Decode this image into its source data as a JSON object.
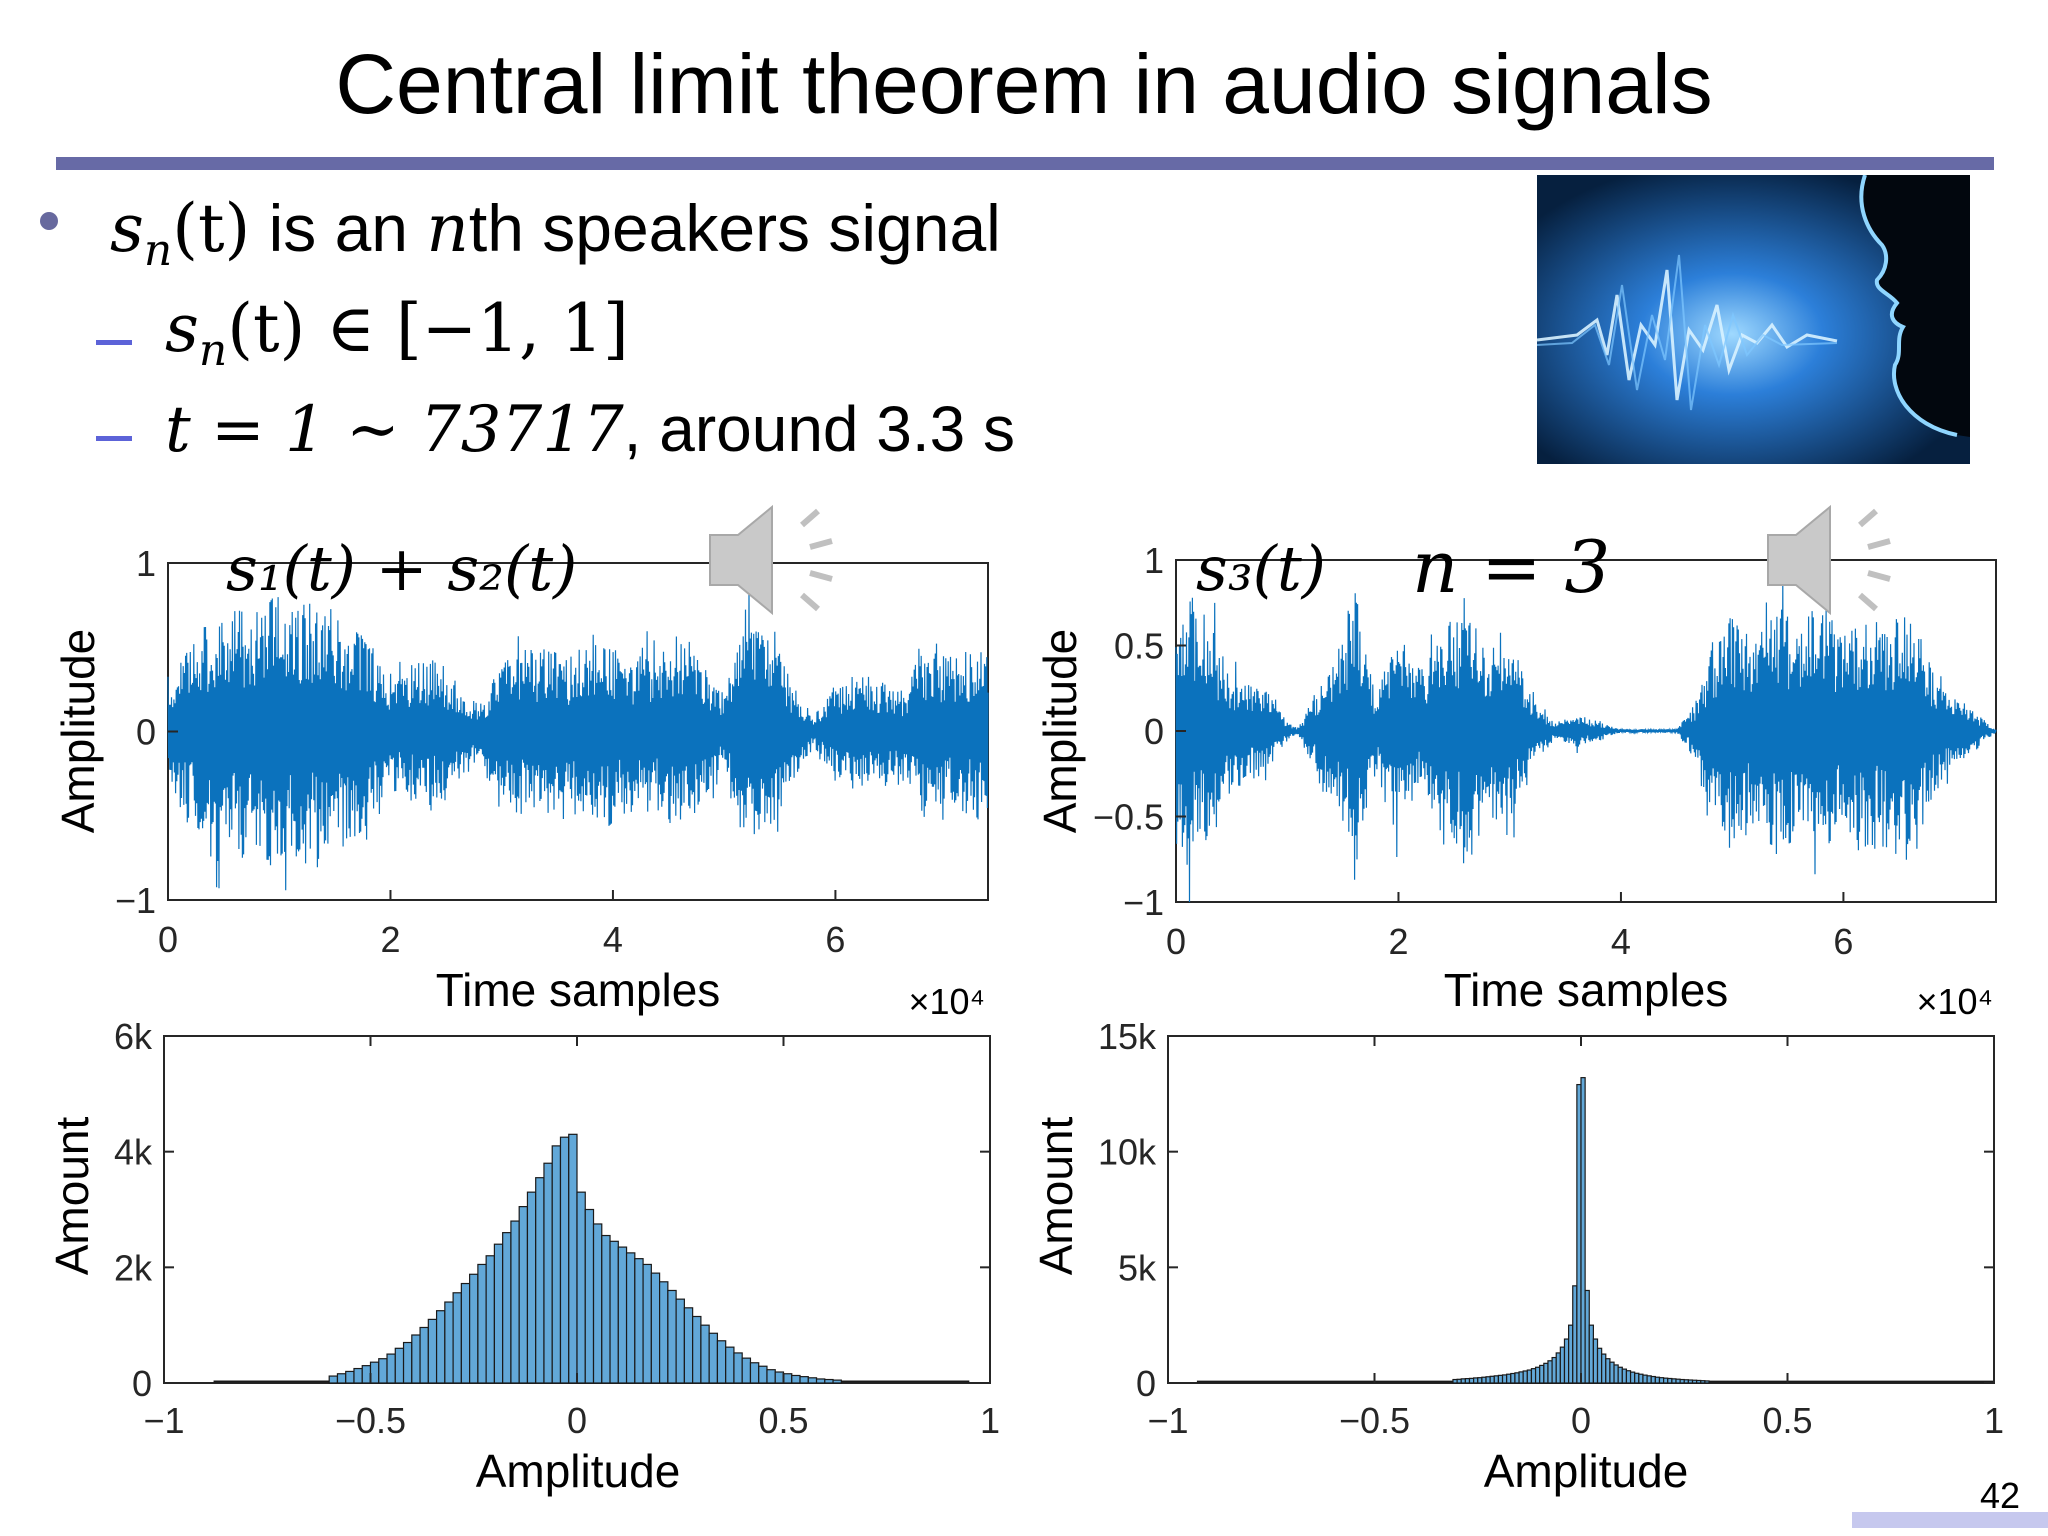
{
  "slide": {
    "title": "Central limit theorem in audio signals",
    "page_number": "42",
    "bullets": {
      "b1_math": "s",
      "b1_sub": "n",
      "b1_paren": "(t)",
      "b1_text1": "is an ",
      "b1_n": "n",
      "b1_text2": "th speakers signal",
      "b2_math": "s",
      "b2_sub": "n",
      "b2_rest": "(t) ∈ [−1, 1]",
      "b3_math": "t = 1 ∼ 73717",
      "b3_text": ", around 3.3 s"
    },
    "labels": {
      "left_wave_label": "s₁(t) + s₂(t)",
      "right_wave_label": "s₃(t)",
      "n_label": "n = 3"
    },
    "icons": [
      "speaker-sound-icon",
      "speaker-sound-icon"
    ],
    "colors": {
      "title_rule": "#676aa6",
      "dash": "#5c63d8",
      "signal": "#0b72bd",
      "hist_fill": "#62a8d8"
    }
  },
  "chart_data": [
    {
      "type": "line",
      "name": "waveform_left",
      "xlabel": "Time samples",
      "ylabel": "Amplitude",
      "x_multiplier": "×10⁴",
      "xlim": [
        0,
        7.3717
      ],
      "ylim": [
        -1,
        1
      ],
      "xticks": [
        "0",
        "2",
        "4",
        "6"
      ],
      "yticks": [
        "−1",
        "0",
        "1"
      ],
      "envelope_x": [
        0,
        0.2,
        0.4,
        0.6,
        0.8,
        1.0,
        1.2,
        1.4,
        1.6,
        1.8,
        2.0,
        2.2,
        2.4,
        2.6,
        2.8,
        3.0,
        3.2,
        3.4,
        3.6,
        3.8,
        4.0,
        4.2,
        4.4,
        4.6,
        4.8,
        5.0,
        5.2,
        5.4,
        5.6,
        5.8,
        6.0,
        6.2,
        6.4,
        6.6,
        6.8,
        7.0,
        7.37
      ],
      "envelope_amp": [
        0.35,
        0.55,
        0.7,
        0.75,
        0.7,
        0.85,
        0.8,
        0.75,
        0.65,
        0.55,
        0.35,
        0.4,
        0.45,
        0.3,
        0.15,
        0.45,
        0.5,
        0.5,
        0.45,
        0.55,
        0.5,
        0.45,
        0.5,
        0.55,
        0.45,
        0.2,
        0.75,
        0.6,
        0.3,
        0.1,
        0.25,
        0.35,
        0.3,
        0.25,
        0.5,
        0.45,
        0.5
      ]
    },
    {
      "type": "line",
      "name": "waveform_right",
      "xlabel": "Time samples",
      "ylabel": "Amplitude",
      "x_multiplier": "×10⁴",
      "xlim": [
        0,
        7.3717
      ],
      "ylim": [
        -1,
        1
      ],
      "xticks": [
        "0",
        "2",
        "4",
        "6"
      ],
      "yticks": [
        "−1",
        "−0.5",
        "0",
        "0.5",
        "1"
      ],
      "envelope_x": [
        0,
        0.1,
        0.2,
        0.3,
        0.4,
        0.6,
        0.8,
        1.0,
        1.1,
        1.3,
        1.5,
        1.6,
        1.7,
        1.8,
        2.0,
        2.2,
        2.4,
        2.6,
        2.8,
        3.0,
        3.2,
        3.4,
        3.6,
        4.0,
        4.5,
        4.7,
        4.8,
        5.0,
        5.2,
        5.4,
        5.6,
        5.8,
        6.0,
        6.2,
        6.4,
        6.6,
        6.8,
        7.0,
        7.37
      ],
      "envelope_amp": [
        0.7,
        0.95,
        0.6,
        0.8,
        0.4,
        0.3,
        0.25,
        0.05,
        0.02,
        0.3,
        0.55,
        0.9,
        0.5,
        0.2,
        0.6,
        0.35,
        0.6,
        0.75,
        0.55,
        0.6,
        0.2,
        0.05,
        0.1,
        0.01,
        0.01,
        0.2,
        0.5,
        0.7,
        0.5,
        0.75,
        0.6,
        0.8,
        0.55,
        0.7,
        0.6,
        0.75,
        0.4,
        0.2,
        0.01
      ]
    },
    {
      "type": "bar",
      "name": "histogram_left",
      "xlabel": "Amplitude",
      "ylabel": "Amount",
      "xlim": [
        -1,
        1
      ],
      "ylim": [
        0,
        6000
      ],
      "xticks": [
        "−1",
        "−0.5",
        "0",
        "0.5",
        "1"
      ],
      "yticks": [
        "0",
        "2k",
        "4k",
        "6k"
      ],
      "bin_width": 0.02,
      "bin_centers": [
        -0.59,
        -0.57,
        -0.55,
        -0.53,
        -0.51,
        -0.49,
        -0.47,
        -0.45,
        -0.43,
        -0.41,
        -0.39,
        -0.37,
        -0.35,
        -0.33,
        -0.31,
        -0.29,
        -0.27,
        -0.25,
        -0.23,
        -0.21,
        -0.19,
        -0.17,
        -0.15,
        -0.13,
        -0.11,
        -0.09,
        -0.07,
        -0.05,
        -0.03,
        -0.01,
        0.01,
        0.03,
        0.05,
        0.07,
        0.09,
        0.11,
        0.13,
        0.15,
        0.17,
        0.19,
        0.21,
        0.23,
        0.25,
        0.27,
        0.29,
        0.31,
        0.33,
        0.35,
        0.37,
        0.39,
        0.41,
        0.43,
        0.45,
        0.47,
        0.49,
        0.51,
        0.53,
        0.55,
        0.57,
        0.59,
        0.61,
        0.63
      ],
      "values": [
        120,
        160,
        200,
        250,
        300,
        360,
        420,
        500,
        600,
        700,
        830,
        960,
        1100,
        1250,
        1400,
        1560,
        1720,
        1880,
        2050,
        2200,
        2400,
        2600,
        2800,
        3050,
        3300,
        3550,
        3800,
        4100,
        4250,
        4300,
        3300,
        3000,
        2750,
        2550,
        2450,
        2350,
        2250,
        2150,
        2050,
        1900,
        1750,
        1600,
        1450,
        1300,
        1150,
        1000,
        860,
        730,
        620,
        520,
        430,
        350,
        290,
        230,
        190,
        160,
        130,
        110,
        90,
        70,
        60,
        50
      ],
      "tails": {
        "left_from": -0.88,
        "right_to": 0.95,
        "tail_value": 25
      }
    },
    {
      "type": "bar",
      "name": "histogram_right",
      "xlabel": "Amplitude",
      "ylabel": "Amount",
      "xlim": [
        -1,
        1
      ],
      "ylim": [
        0,
        15000
      ],
      "xticks": [
        "−1",
        "−0.5",
        "0",
        "0.5",
        "1"
      ],
      "yticks": [
        "0",
        "5k",
        "10k",
        "15k"
      ],
      "bin_width": 0.01,
      "bin_centers": [
        -0.305,
        -0.295,
        -0.285,
        -0.275,
        -0.265,
        -0.255,
        -0.245,
        -0.235,
        -0.225,
        -0.215,
        -0.205,
        -0.195,
        -0.185,
        -0.175,
        -0.165,
        -0.155,
        -0.145,
        -0.135,
        -0.125,
        -0.115,
        -0.105,
        -0.095,
        -0.085,
        -0.075,
        -0.065,
        -0.055,
        -0.045,
        -0.035,
        -0.025,
        -0.015,
        -0.005,
        0.005,
        0.015,
        0.025,
        0.035,
        0.045,
        0.055,
        0.065,
        0.075,
        0.085,
        0.095,
        0.105,
        0.115,
        0.125,
        0.135,
        0.145,
        0.155,
        0.165,
        0.175,
        0.185,
        0.195,
        0.205,
        0.215,
        0.225,
        0.235,
        0.245,
        0.255,
        0.265,
        0.275,
        0.285,
        0.295,
        0.305
      ],
      "values": [
        150,
        160,
        180,
        190,
        200,
        220,
        230,
        250,
        270,
        290,
        310,
        330,
        350,
        380,
        410,
        440,
        480,
        520,
        560,
        620,
        680,
        760,
        850,
        960,
        1100,
        1300,
        1550,
        1900,
        2500,
        4200,
        12900,
        13200,
        4000,
        2500,
        1900,
        1500,
        1250,
        1050,
        900,
        780,
        680,
        600,
        530,
        470,
        420,
        380,
        340,
        310,
        280,
        250,
        230,
        210,
        195,
        180,
        165,
        150,
        140,
        130,
        120,
        110,
        100,
        90
      ],
      "tails": {
        "left_from": -0.93,
        "right_to": 1.0,
        "tail_value": 60
      }
    }
  ]
}
